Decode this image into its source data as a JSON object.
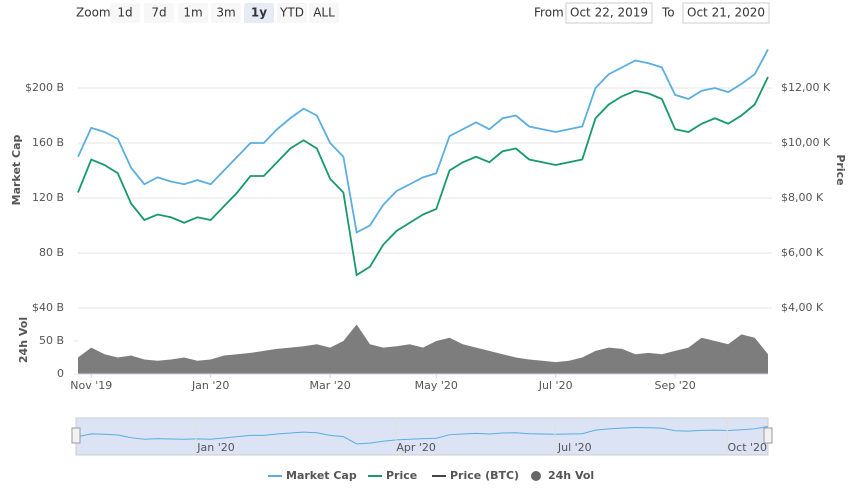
{
  "controls": {
    "zoom_label": "Zoom",
    "zoom_buttons": [
      "1d",
      "7d",
      "1m",
      "3m",
      "1y",
      "YTD",
      "ALL"
    ],
    "selected": "1y",
    "from_label": "From",
    "from": "Oct 22, 2019",
    "to_label": "To",
    "to": "Oct 21, 2020"
  },
  "chart_data": {
    "type": "line",
    "categories": [
      null,
      "Nov '19",
      null,
      null,
      null,
      null,
      null,
      null,
      null,
      null,
      "Jan '20",
      null,
      null,
      null,
      null,
      null,
      null,
      null,
      null,
      "Mar '20",
      null,
      null,
      null,
      null,
      null,
      null,
      null,
      "May '20",
      null,
      null,
      null,
      null,
      null,
      null,
      null,
      null,
      "Jul '20",
      null,
      null,
      null,
      null,
      null,
      null,
      null,
      null,
      "Sep '20",
      null,
      null,
      null,
      null,
      null,
      null,
      null
    ],
    "y_label": "Market Cap",
    "y2_label": "Price",
    "ylim": [
      40,
      240
    ],
    "yticks": [
      {
        "value": 40,
        "label": "$40 B"
      },
      {
        "value": 80,
        "label": "80 B"
      },
      {
        "value": 120,
        "label": "120 B"
      },
      {
        "value": 160,
        "label": "160 B"
      },
      {
        "value": 200,
        "label": "$200 B"
      }
    ],
    "y2lim": [
      4,
      14
    ],
    "y2ticks": [
      {
        "value": 4,
        "label": "$4,00 K"
      },
      {
        "value": 6,
        "label": "$6,00 K"
      },
      {
        "value": 8,
        "label": "$8,00 K"
      },
      {
        "value": 10,
        "label": "$10,00 K"
      },
      {
        "value": 12,
        "label": "$12,00 K"
      }
    ],
    "grid": true,
    "series": [
      {
        "name": "Market Cap",
        "color": "#5aaee0",
        "values": [
          150,
          171,
          168,
          163,
          142,
          130,
          135,
          132,
          130,
          133,
          130,
          140,
          150,
          160,
          160,
          170,
          178,
          185,
          180,
          160,
          150,
          95,
          100,
          115,
          125,
          130,
          135,
          138,
          165,
          170,
          175,
          170,
          178,
          180,
          172,
          170,
          168,
          170,
          172,
          200,
          210,
          215,
          220,
          218,
          215,
          195,
          192,
          198,
          200,
          197,
          203,
          210,
          228
        ]
      },
      {
        "name": "Price",
        "color": "#17996a",
        "axis": "y2",
        "values": [
          8.2,
          9.4,
          9.2,
          8.9,
          7.8,
          7.2,
          7.4,
          7.3,
          7.1,
          7.3,
          7.2,
          7.7,
          8.2,
          8.8,
          8.8,
          9.3,
          9.8,
          10.1,
          9.8,
          8.7,
          8.2,
          5.2,
          5.5,
          6.3,
          6.8,
          7.1,
          7.4,
          7.6,
          9.0,
          9.3,
          9.5,
          9.3,
          9.7,
          9.8,
          9.4,
          9.3,
          9.2,
          9.3,
          9.4,
          10.9,
          11.4,
          11.7,
          11.9,
          11.8,
          11.6,
          10.5,
          10.4,
          10.7,
          10.9,
          10.7,
          11.0,
          11.4,
          12.4
        ]
      },
      {
        "name": "Price (BTC)",
        "color": "#444444"
      }
    ],
    "volume": {
      "name": "24h Vol",
      "color": "#666666",
      "axis_label": "24h Vol",
      "ylim": [
        0,
        100
      ],
      "yticks": [
        0,
        {
          "value": 50,
          "label": "50 B"
        }
      ],
      "values": [
        25,
        40,
        30,
        25,
        28,
        22,
        20,
        22,
        25,
        20,
        22,
        28,
        30,
        32,
        35,
        38,
        40,
        42,
        45,
        40,
        50,
        75,
        45,
        40,
        42,
        45,
        40,
        50,
        55,
        45,
        40,
        35,
        30,
        25,
        22,
        20,
        18,
        20,
        25,
        35,
        40,
        38,
        30,
        32,
        30,
        35,
        40,
        55,
        50,
        45,
        60,
        55,
        30
      ]
    },
    "navigator": {
      "labels": [
        "Jan '20",
        "Apr '20",
        "Jul '20",
        "Oct '20"
      ]
    }
  }
}
